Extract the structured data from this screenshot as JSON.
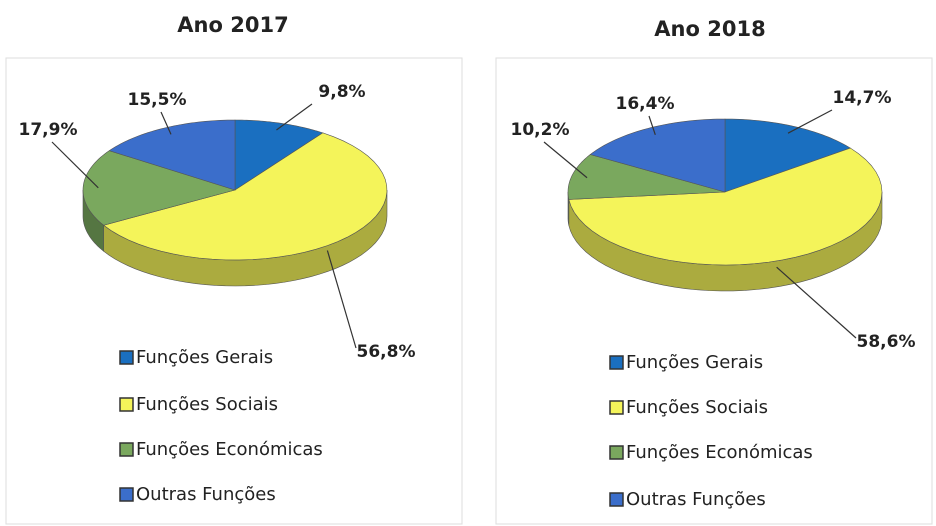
{
  "chart_data": [
    {
      "type": "pie",
      "title": "Ano 2017",
      "categories": [
        "Funções Gerais",
        "Funções Sociais",
        "Funções Económicas",
        "Outras Funções"
      ],
      "values": [
        9.8,
        56.8,
        17.9,
        15.5
      ],
      "value_labels": [
        "9,8%",
        "56,8%",
        "17,9%",
        "15,5%"
      ],
      "colors": [
        "#1a6fc0",
        "#f4f45a",
        "#7aa85e",
        "#3b6ecb"
      ]
    },
    {
      "type": "pie",
      "title": "Ano 2018",
      "categories": [
        "Funções Gerais",
        "Funções Sociais",
        "Funções Económicas",
        "Outras Funções"
      ],
      "values": [
        14.7,
        58.6,
        10.2,
        16.4
      ],
      "value_labels": [
        "14,7%",
        "58,6%",
        "10,2%",
        "16,4%"
      ],
      "colors": [
        "#1a6fc0",
        "#f4f45a",
        "#7aa85e",
        "#3b6ecb"
      ]
    }
  ]
}
